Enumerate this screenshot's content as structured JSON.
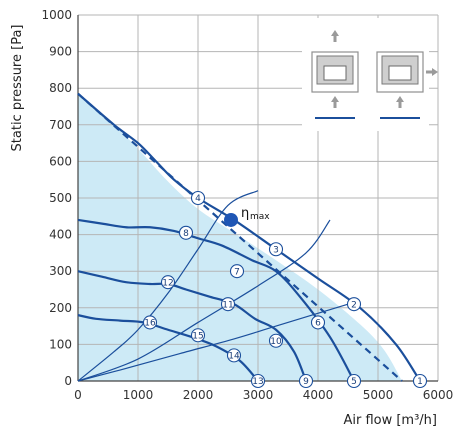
{
  "chart_data": {
    "type": "line",
    "xlabel": "Air flow [m³/h]",
    "ylabel": "Static pressure [Pa]",
    "xlim": [
      0,
      6000
    ],
    "ylim": [
      0,
      1000
    ],
    "x_ticks": [
      "0",
      "1000",
      "2000",
      "3000",
      "4000",
      "5000",
      "6000"
    ],
    "y_ticks": [
      "0",
      "100",
      "200",
      "300",
      "400",
      "500",
      "600",
      "700",
      "800",
      "900",
      "1000"
    ],
    "grid": true,
    "colors": {
      "curve": "#1b4f9c",
      "area": "#cdeaf6",
      "grid": "#b5b5b5",
      "marker": "#1f56b5"
    },
    "operating_area": {
      "x": [
        0,
        200,
        600,
        1000,
        1500,
        2000,
        2600,
        3300,
        4000,
        4700,
        5100,
        5400
      ],
      "y": [
        785,
        760,
        700,
        635,
        545,
        470,
        405,
        330,
        250,
        155,
        85,
        0
      ]
    },
    "series": [
      {
        "x": [
          0,
          600,
          1000,
          1300,
          1600,
          2000,
          2600,
          3300,
          4000,
          4700,
          5300,
          5700
        ],
        "y": [
          785,
          700,
          650,
          600,
          550,
          500,
          440,
          360,
          280,
          200,
          100,
          0
        ]
      },
      {
        "x": [
          0,
          400,
          800,
          1200,
          1600,
          2000,
          2400,
          2900,
          3300,
          3700,
          4200,
          4600
        ],
        "y": [
          440,
          430,
          420,
          420,
          410,
          390,
          370,
          330,
          300,
          230,
          120,
          0
        ]
      },
      {
        "x": [
          0,
          400,
          800,
          1200,
          1500,
          1800,
          2200,
          2600,
          2950,
          3300,
          3600,
          3800
        ],
        "y": [
          300,
          285,
          270,
          265,
          265,
          250,
          230,
          210,
          170,
          140,
          80,
          0
        ]
      },
      {
        "x": [
          0,
          300,
          700,
          1100,
          1500,
          1900,
          2300,
          2700,
          3000
        ],
        "y": [
          180,
          170,
          165,
          160,
          140,
          120,
          95,
          55,
          0
        ]
      },
      {
        "x": [
          0,
          5400
        ],
        "y": [
          785,
          0
        ],
        "style": "dashed"
      },
      {
        "x": [
          0,
          700,
          1700,
          2600,
          3300,
          4500
        ],
        "y": [
          0,
          30,
          75,
          115,
          150,
          210
        ]
      },
      {
        "x": [
          0,
          1000,
          2000,
          3000,
          3800,
          4200
        ],
        "y": [
          0,
          60,
          160,
          260,
          350,
          440
        ]
      },
      {
        "x": [
          0,
          600,
          1000,
          1500,
          2000,
          2500,
          3000
        ],
        "y": [
          0,
          80,
          140,
          240,
          360,
          480,
          520
        ]
      }
    ],
    "points": [
      {
        "label": "1",
        "x": 5700,
        "y": 0
      },
      {
        "label": "2",
        "x": 4600,
        "y": 210
      },
      {
        "label": "3",
        "x": 3300,
        "y": 360
      },
      {
        "label": "4",
        "x": 2000,
        "y": 500
      },
      {
        "label": "5",
        "x": 4600,
        "y": 0
      },
      {
        "label": "6",
        "x": 4000,
        "y": 160
      },
      {
        "label": "7",
        "x": 2650,
        "y": 300
      },
      {
        "label": "8",
        "x": 1800,
        "y": 405
      },
      {
        "label": "9",
        "x": 3800,
        "y": 0
      },
      {
        "label": "10",
        "x": 3300,
        "y": 110
      },
      {
        "label": "11",
        "x": 2500,
        "y": 210
      },
      {
        "label": "12",
        "x": 1500,
        "y": 270
      },
      {
        "label": "13",
        "x": 3000,
        "y": 0
      },
      {
        "label": "14",
        "x": 2600,
        "y": 70
      },
      {
        "label": "15",
        "x": 2000,
        "y": 125
      },
      {
        "label": "16",
        "x": 1200,
        "y": 160
      }
    ],
    "eta_max": {
      "x": 2550,
      "y": 440,
      "label": "η",
      "sub": "max"
    },
    "diagrams": [
      {
        "name": "vertical-flow-unit",
        "arrows": [
          "up",
          "up"
        ]
      },
      {
        "name": "horizontal-flow-unit",
        "arrows": [
          "right",
          "up"
        ]
      }
    ]
  }
}
